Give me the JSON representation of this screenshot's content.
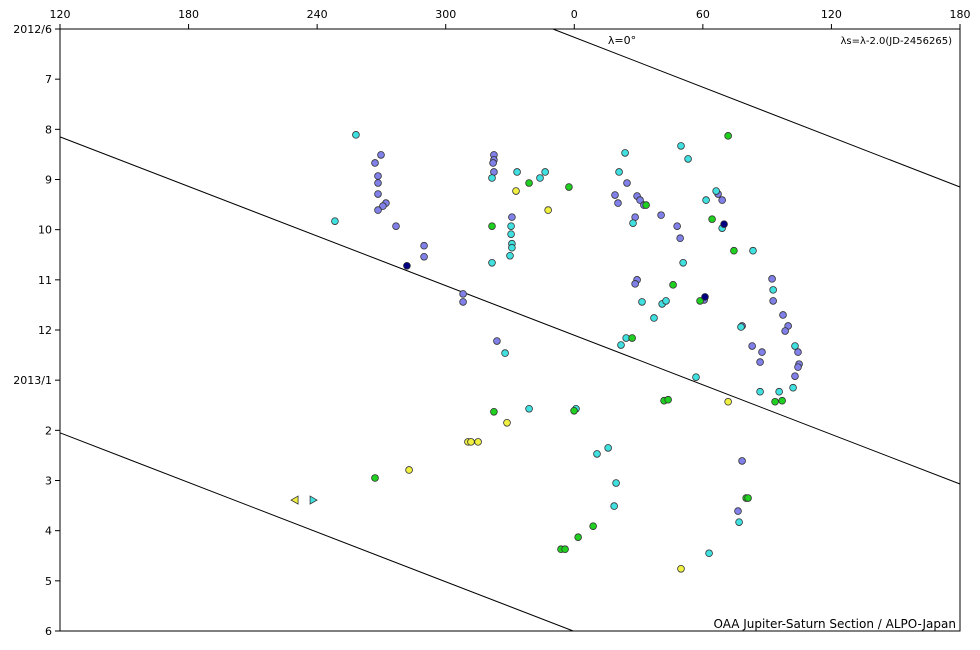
{
  "chart_data": {
    "type": "scatter",
    "annotations": {
      "zero": "λ=0°",
      "formula": "λs=λ-2.0(JD-2456265)",
      "credit": "OAA Jupiter-Saturn Section / ALPO-Japan"
    },
    "xlim": [
      120,
      540
    ],
    "xticks": [
      120,
      180,
      240,
      300,
      {
        "value": 360,
        "label": "0"
      },
      {
        "value": 420,
        "label": "60"
      },
      {
        "value": 480,
        "label": "120"
      },
      {
        "value": 540,
        "label": "180"
      }
    ],
    "ylim": [
      6,
      18
    ],
    "y_inverted": true,
    "yticks": [
      {
        "value": 6,
        "label": "2012/6"
      },
      7,
      8,
      9,
      10,
      11,
      12,
      {
        "value": 13,
        "label": "2013/1"
      },
      {
        "value": 14,
        "label": "2"
      },
      {
        "value": 15,
        "label": "3"
      },
      {
        "value": 16,
        "label": "4"
      },
      {
        "value": 17,
        "label": "5"
      },
      {
        "value": 18,
        "label": "6"
      }
    ],
    "reference_lines": [
      {
        "x": [
          350,
          540
        ],
        "y": [
          6,
          9.15
        ]
      },
      {
        "x": [
          120,
          540
        ],
        "y": [
          8.15,
          15.07
        ]
      },
      {
        "x": [
          120,
          359.5
        ],
        "y": [
          14.05,
          18
        ]
      }
    ],
    "series": [
      {
        "color": "#8080e8",
        "marker": "circle",
        "x": [
          269.8,
          267.0,
          268.4,
          268.4,
          268.4,
          272.1,
          270.7,
          268.4,
          276.8,
          289.9,
          289.9,
          308.1,
          308.1,
          322.5,
          322.5,
          322.1,
          322.5,
          330.9,
          323.9,
          379.0,
          380.4,
          384.6,
          389.3,
          390.7,
          392.5,
          388.4,
          400.5,
          408.0,
          409.4,
          427.1,
          429.0,
          389.3,
          388.4,
          438.3,
          443.0,
          447.6,
          446.7,
          452.3,
          452.8,
          457.4,
          459.8,
          458.4,
          464.4,
          464.9,
          464.4,
          463.0,
          438.3,
          436.4,
          420.6
        ],
        "y": [
          8.51,
          8.67,
          8.93,
          9.07,
          9.29,
          9.47,
          9.53,
          9.61,
          9.93,
          10.32,
          10.54,
          11.28,
          11.44,
          8.51,
          8.61,
          8.67,
          8.85,
          9.75,
          12.22,
          9.31,
          9.47,
          9.07,
          9.33,
          9.41,
          9.51,
          9.75,
          9.71,
          9.93,
          10.17,
          9.29,
          9.41,
          11.0,
          11.08,
          11.92,
          12.32,
          12.44,
          12.64,
          10.98,
          11.42,
          11.7,
          11.92,
          12.02,
          12.44,
          12.68,
          12.74,
          12.92,
          14.61,
          15.61,
          11.4
        ]
      },
      {
        "color": "#40e0e0",
        "marker": "circle",
        "x": [
          258.1,
          248.3,
          321.6,
          321.6,
          333.3,
          346.4,
          344.0,
          330.5,
          330.5,
          330.9,
          330.9,
          330.0,
          327.7,
          338.9,
          360.8,
          409.8,
          413.1,
          383.7,
          380.9,
          421.5,
          426.2,
          429.0,
          387.4,
          391.6,
          397.2,
          401.0,
          402.8,
          384.2,
          381.8,
          410.8,
          416.8,
          452.8,
          437.8,
          443.4,
          446.7,
          455.6,
          462.1,
          463.0,
          375.8,
          370.6,
          379.5,
          378.6,
          436.9,
          422.9
        ],
        "y": [
          8.11,
          9.83,
          8.97,
          10.66,
          8.85,
          8.85,
          8.97,
          9.93,
          10.09,
          10.28,
          10.36,
          10.52,
          12.46,
          13.57,
          13.57,
          8.33,
          8.59,
          8.47,
          8.85,
          9.41,
          9.23,
          9.97,
          9.87,
          11.44,
          11.76,
          11.48,
          11.42,
          12.16,
          12.3,
          10.66,
          12.94,
          11.2,
          11.94,
          10.42,
          13.23,
          13.23,
          13.15,
          12.32,
          14.35,
          14.47,
          15.05,
          15.51,
          15.83,
          16.45
        ]
      },
      {
        "color": "#20d020",
        "marker": "circle",
        "x": [
          431.8,
          338.9,
          357.5,
          393.5,
          424.3,
          434.5,
          406.1,
          418.7,
          387.0,
          401.9,
          403.8,
          453.7,
          457.0,
          322.5,
          359.9,
          321.6,
          267.0,
          440.2,
          441.1,
          368.8,
          361.8,
          353.8,
          355.7
        ],
        "y": [
          8.13,
          9.07,
          9.15,
          9.51,
          9.79,
          10.42,
          11.1,
          11.42,
          12.16,
          13.41,
          13.39,
          13.43,
          13.41,
          13.63,
          13.61,
          9.93,
          14.95,
          15.35,
          15.35,
          15.91,
          16.13,
          16.37,
          16.37
        ]
      },
      {
        "color": "#f0f040",
        "marker": "circle",
        "x": [
          332.8,
          347.8,
          431.8,
          328.6,
          310.4,
          311.8,
          315.1,
          282.9,
          409.8
        ],
        "y": [
          9.23,
          9.61,
          13.43,
          13.85,
          14.23,
          14.23,
          14.23,
          14.79,
          16.76
        ]
      },
      {
        "color": "#000080",
        "marker": "circle",
        "x": [
          281.9,
          421.0,
          429.9
        ],
        "y": [
          10.72,
          11.34,
          9.89
        ]
      },
      {
        "color": "#f0f040",
        "marker": "triangle-left",
        "x": [
          229.7
        ],
        "y": [
          15.39
        ]
      },
      {
        "color": "#40e0e0",
        "marker": "triangle-right",
        "x": [
          238.1
        ],
        "y": [
          15.39
        ]
      }
    ]
  }
}
